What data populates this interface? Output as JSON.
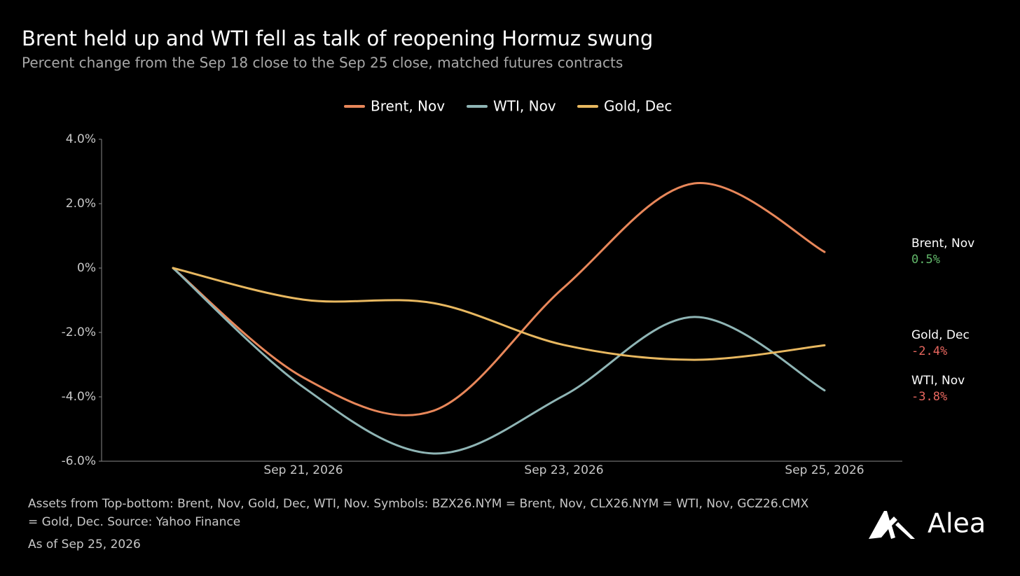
{
  "chart_data": {
    "type": "line",
    "title": "Brent held up and WTI fell as talk of reopening Hormuz swung",
    "subtitle": "Percent change from the Sep 18 close to the Sep 25 close, matched futures contracts",
    "categories": [
      null,
      "Sep 21, 2026",
      null,
      "Sep 23, 2026",
      null,
      "Sep 25, 2026"
    ],
    "series": [
      {
        "name": "Brent, Nov",
        "color": "#e8875a",
        "values": [
          0,
          -3.4,
          -4.43,
          -0.6,
          2.63,
          0.5
        ],
        "value_labels": [
          null,
          null,
          null,
          null,
          null,
          "0.5%"
        ]
      },
      {
        "name": "WTI, Nov",
        "color": "#8fb5b5",
        "values": [
          0,
          -3.7,
          -5.76,
          -3.96,
          -1.52,
          -3.8
        ],
        "value_labels": [
          null,
          null,
          null,
          null,
          null,
          "-3.8%"
        ]
      },
      {
        "name": "Gold, Dec",
        "color": "#e8b860",
        "values": [
          0,
          -0.98,
          -1.09,
          -2.39,
          -2.85,
          -2.4
        ],
        "value_labels": [
          null,
          null,
          null,
          null,
          null,
          "-2.4%"
        ]
      }
    ],
    "ylim": [
      -6,
      4
    ],
    "yticks": [
      {
        "value": 4,
        "label": "4.0%"
      },
      {
        "value": 2,
        "label": "2.0%"
      },
      {
        "value": 0,
        "label": "0%"
      },
      {
        "value": -2,
        "label": "-2.0%"
      },
      {
        "value": -4,
        "label": "-4.0%"
      },
      {
        "value": -6,
        "label": "-6.0%"
      }
    ],
    "legend": "top",
    "footnote": "Assets from Top-bottom: Brent, Nov, Gold, Dec, WTI, Nov. Symbols: BZX26.NYM = Brent, Nov, CLX26.NYM = WTI, Nov, GCZ26.CMX = Gold, Dec. Source: Yahoo Finance",
    "as_of": "As of Sep 25, 2026",
    "brand": "Alea"
  }
}
